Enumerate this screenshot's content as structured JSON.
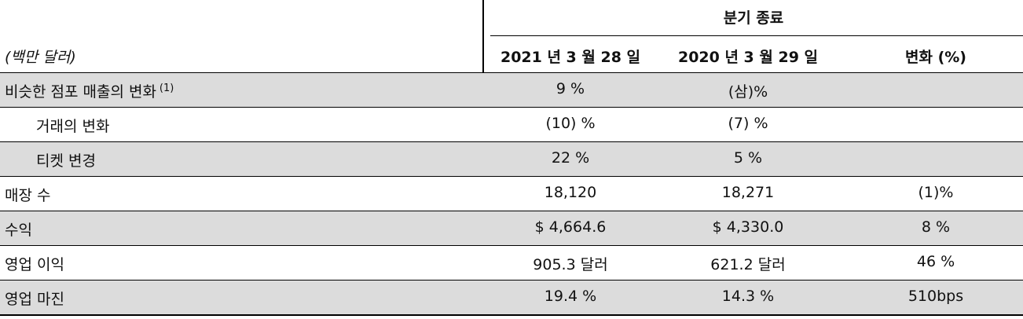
{
  "header": {
    "group_title": "분기 종료",
    "unit_label": "(백만 달러)",
    "columns": [
      "2021 년 3 월 28 일",
      "2020 년 3 월 29 일",
      "변화 (%)"
    ]
  },
  "rows": [
    {
      "label": "비슷한 점포 매출의 변화",
      "footnote": "(1)",
      "values": [
        "9 %",
        "(삼)%",
        ""
      ]
    },
    {
      "label": "거래의 변화",
      "values": [
        "(10) %",
        "(7) %",
        ""
      ]
    },
    {
      "label": "티켓 변경",
      "values": [
        "22 %",
        "5 %",
        ""
      ]
    },
    {
      "label": "매장 수",
      "values": [
        "18,120",
        "18,271",
        "(1)%"
      ]
    },
    {
      "label": "수익",
      "values": [
        "$ 4,664.6",
        "$ 4,330.0",
        "8 %"
      ]
    },
    {
      "label": "영업 이익",
      "values": [
        "905.3 달러",
        "621.2 달러",
        "46 %"
      ]
    },
    {
      "label": "영업 마진",
      "values": [
        "19.4 %",
        "14.3 %",
        "510bps"
      ]
    }
  ]
}
